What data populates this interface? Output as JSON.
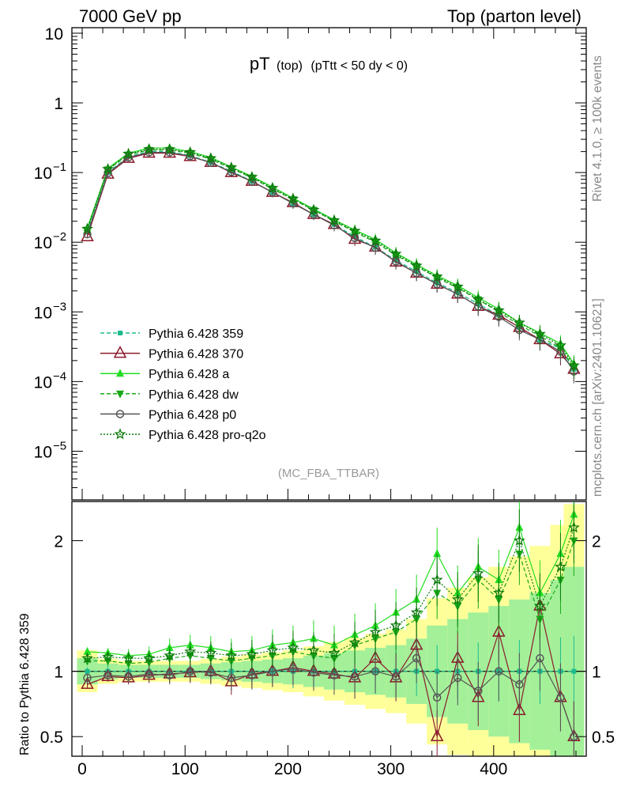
{
  "header": {
    "left": "7000 GeV pp",
    "right": "Top (parton level)"
  },
  "side_text": {
    "rivet": "Rivet 4.1.0, ≥ 100k events",
    "mcplots": "mcplots.cern.ch [arXiv:2401.10621]"
  },
  "chart_data": {
    "type": "line",
    "title_main": "pT",
    "title_sub": "(top)",
    "title_cut": "(pTtt < 50 dy < 0)",
    "analysis_label": "(MC_FBA_TTBAR)",
    "ratio_ylabel": "Ratio to Pythia 6.428 359",
    "main_yaxis": {
      "scale": "log",
      "range": [
        2e-06,
        12
      ],
      "ticks": [
        {
          "value": 10,
          "label": "10"
        },
        {
          "value": 1,
          "label": "1"
        },
        {
          "value": 0.1,
          "label": "10",
          "exp": "−1"
        },
        {
          "value": 0.01,
          "label": "10",
          "exp": "−2"
        },
        {
          "value": 0.001,
          "label": "10",
          "exp": "−3"
        },
        {
          "value": 0.0001,
          "label": "10",
          "exp": "−4"
        },
        {
          "value": 1e-05,
          "label": "10",
          "exp": "−5"
        }
      ]
    },
    "ratio_yaxis": {
      "range": [
        0.35,
        2.3
      ],
      "ticks": [
        {
          "value": 0.5,
          "label": "0.5"
        },
        {
          "value": 1,
          "label": "1"
        },
        {
          "value": 2,
          "label": "2"
        }
      ]
    },
    "xaxis": {
      "range": [
        -10,
        490
      ],
      "ticks": [
        {
          "value": 0,
          "label": "0"
        },
        {
          "value": 100,
          "label": "100"
        },
        {
          "value": 200,
          "label": "200"
        },
        {
          "value": 300,
          "label": "300"
        },
        {
          "value": 400,
          "label": "400"
        }
      ]
    },
    "x": [
      5,
      25,
      45,
      65,
      85,
      105,
      125,
      145,
      165,
      185,
      205,
      225,
      245,
      265,
      285,
      305,
      325,
      345,
      365,
      385,
      405,
      425,
      445,
      465,
      478
    ],
    "series": [
      {
        "name": "Pythia 6.428 359",
        "color": "#1cbb8c",
        "style": "dashed",
        "marker": "square",
        "values": [
          0.014,
          0.1,
          0.17,
          0.2,
          0.2,
          0.175,
          0.14,
          0.105,
          0.075,
          0.052,
          0.036,
          0.025,
          0.018,
          0.012,
          0.0085,
          0.0055,
          0.0038,
          0.0026,
          0.0019,
          0.0013,
          0.0009,
          0.0006,
          0.0004,
          0.0003,
          0.00015
        ],
        "ratio": [
          1,
          1,
          1,
          1,
          1,
          1,
          1,
          1,
          1,
          1,
          1,
          1,
          1,
          1,
          1,
          1,
          1,
          1,
          1,
          1,
          1,
          1,
          1,
          1,
          1
        ]
      },
      {
        "name": "Pythia 6.428 370",
        "color": "#8b1a2b",
        "style": "solid",
        "marker": "open-triangle",
        "values": [
          0.012,
          0.095,
          0.16,
          0.19,
          0.19,
          0.17,
          0.14,
          0.1,
          0.075,
          0.052,
          0.037,
          0.025,
          0.018,
          0.011,
          0.0085,
          0.0052,
          0.0036,
          0.0025,
          0.0018,
          0.0012,
          0.0009,
          0.0006,
          0.0004,
          0.00025,
          0.00015
        ],
        "ratio": [
          0.9,
          0.96,
          0.95,
          0.97,
          0.98,
          0.99,
          1.0,
          0.92,
          0.98,
          1.0,
          1.03,
          1.0,
          0.98,
          0.95,
          1.1,
          0.95,
          1.2,
          0.5,
          1.1,
          0.8,
          1.3,
          0.7,
          1.5,
          0.8,
          0.5
        ]
      },
      {
        "name": "Pythia 6.428 a",
        "color": "#22dd22",
        "style": "solid",
        "marker": "triangle",
        "values": [
          0.016,
          0.115,
          0.19,
          0.225,
          0.225,
          0.2,
          0.165,
          0.12,
          0.088,
          0.062,
          0.043,
          0.03,
          0.021,
          0.015,
          0.011,
          0.007,
          0.0048,
          0.0033,
          0.0024,
          0.0016,
          0.0011,
          0.0007,
          0.0005,
          0.00035,
          0.00018
        ],
        "ratio": [
          1.15,
          1.14,
          1.12,
          1.13,
          1.18,
          1.2,
          1.18,
          1.15,
          1.16,
          1.2,
          1.22,
          1.25,
          1.2,
          1.28,
          1.35,
          1.45,
          1.55,
          1.9,
          1.6,
          1.8,
          1.7,
          2.1,
          1.6,
          1.9,
          2.2
        ]
      },
      {
        "name": "Pythia 6.428 dw",
        "color": "#19a819",
        "style": "dashed",
        "marker": "triangle-down",
        "values": [
          0.015,
          0.11,
          0.18,
          0.21,
          0.21,
          0.19,
          0.155,
          0.115,
          0.084,
          0.058,
          0.041,
          0.029,
          0.02,
          0.014,
          0.01,
          0.0065,
          0.0045,
          0.0031,
          0.0022,
          0.0015,
          0.001,
          0.00065,
          0.00045,
          0.0003,
          0.00016
        ],
        "ratio": [
          1.08,
          1.08,
          1.06,
          1.07,
          1.1,
          1.12,
          1.1,
          1.08,
          1.1,
          1.12,
          1.15,
          1.12,
          1.1,
          1.2,
          1.25,
          1.3,
          1.4,
          1.6,
          1.5,
          1.7,
          1.55,
          1.9,
          1.4,
          1.7,
          2.0
        ]
      },
      {
        "name": "Pythia 6.428 p0",
        "color": "#555555",
        "style": "solid",
        "marker": "open-circle",
        "values": [
          0.013,
          0.098,
          0.165,
          0.195,
          0.195,
          0.172,
          0.138,
          0.102,
          0.074,
          0.052,
          0.036,
          0.025,
          0.0175,
          0.0115,
          0.0083,
          0.0053,
          0.0036,
          0.0025,
          0.0018,
          0.0012,
          0.00085,
          0.00055,
          0.0004,
          0.00027,
          0.00014
        ],
        "ratio": [
          0.95,
          0.97,
          0.96,
          0.98,
          0.97,
          1.0,
          0.99,
          0.95,
          0.97,
          1.0,
          1.02,
          0.99,
          0.97,
          0.96,
          1.0,
          0.96,
          1.1,
          0.8,
          0.95,
          0.85,
          1.0,
          0.9,
          1.1,
          0.8,
          0.5
        ]
      },
      {
        "name": "Pythia 6.428 pro-q2o",
        "color": "#0d7a0d",
        "style": "dotted",
        "marker": "star",
        "values": [
          0.0155,
          0.112,
          0.185,
          0.215,
          0.215,
          0.195,
          0.16,
          0.118,
          0.086,
          0.06,
          0.042,
          0.029,
          0.0205,
          0.0145,
          0.0105,
          0.0068,
          0.0046,
          0.0032,
          0.0023,
          0.0015,
          0.00105,
          0.0007,
          0.00048,
          0.00033,
          0.00017
        ],
        "ratio": [
          1.1,
          1.11,
          1.1,
          1.1,
          1.12,
          1.15,
          1.14,
          1.12,
          1.13,
          1.16,
          1.18,
          1.16,
          1.14,
          1.22,
          1.3,
          1.35,
          1.45,
          1.7,
          1.55,
          1.75,
          1.6,
          2.0,
          1.5,
          1.8,
          2.1
        ]
      }
    ],
    "band_halfwidth": [
      0.1,
      0.06,
      0.05,
      0.05,
      0.05,
      0.05,
      0.06,
      0.07,
      0.08,
      0.09,
      0.1,
      0.12,
      0.14,
      0.16,
      0.18,
      0.2,
      0.25,
      0.35,
      0.4,
      0.45,
      0.5,
      0.55,
      0.6,
      0.7,
      0.8
    ]
  }
}
